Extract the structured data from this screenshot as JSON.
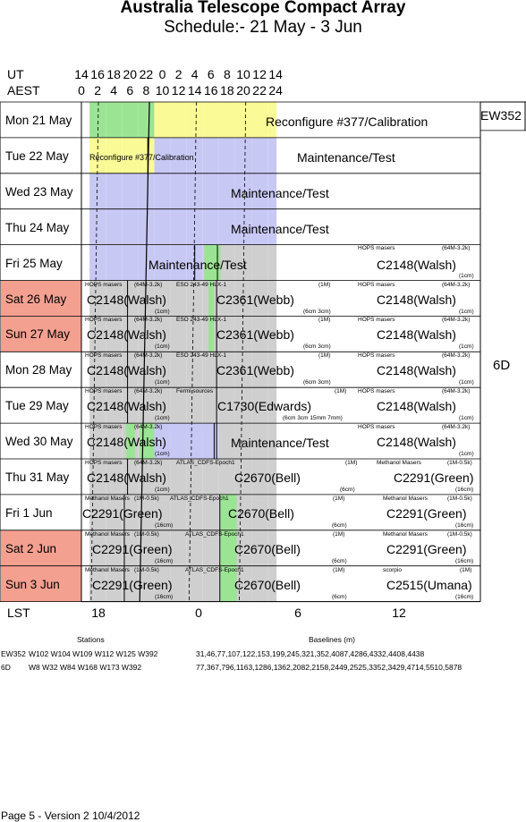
{
  "header": {
    "title": "Australia Telescope Compact Array",
    "subtitle": "Schedule:- 21 May - 3  Jun"
  },
  "axes": {
    "ut_label": "UT",
    "aest_label": "AEST",
    "ut_ticks": [
      "14",
      "16",
      "18",
      "20",
      "22",
      "0",
      "2",
      "4",
      "6",
      "8",
      "10",
      "12",
      "14"
    ],
    "aest_ticks": [
      "0",
      "2",
      "4",
      "6",
      "8",
      "10",
      "12",
      "14",
      "16",
      "18",
      "20",
      "22",
      "24"
    ],
    "lst_label": "LST",
    "lst_ticks": [
      "18",
      "0",
      "6",
      "12"
    ]
  },
  "days": [
    {
      "label": "Mon 21 May",
      "weekend": false
    },
    {
      "label": "Tue  22 May",
      "weekend": false
    },
    {
      "label": "Wed 23 May",
      "weekend": false
    },
    {
      "label": "Thu  24 May",
      "weekend": false
    },
    {
      "label": "Fri    25 May",
      "weekend": false
    },
    {
      "label": "Sat   26 May",
      "weekend": true
    },
    {
      "label": "Sun  27 May",
      "weekend": true
    },
    {
      "label": "Mon 28 May",
      "weekend": false
    },
    {
      "label": "Tue   29 May",
      "weekend": false
    },
    {
      "label": "Wed 30 May",
      "weekend": false
    },
    {
      "label": "Thu   31 May",
      "weekend": false
    },
    {
      "label": "Fri     1  Jun",
      "weekend": false
    },
    {
      "label": "Sat    2  Jun",
      "weekend": true
    },
    {
      "label": "Sun   3  Jun",
      "weekend": true
    }
  ],
  "configs": [
    {
      "label": "EW352"
    },
    {
      "label": "6D"
    }
  ],
  "blocks": {
    "reconf1": "Reconfigure #377/Calibration",
    "reconf2": "Reconfigure #377/Calibration",
    "maint22": "Maintenance/Test",
    "maint23": "Maintenance/Test",
    "maint24": "Maintenance/Test",
    "maint25": "Maintenance/Test",
    "maint30": "Maintenance/Test",
    "c2148": "C2148(Walsh)",
    "c2361": "C2361(Webb)",
    "c1730": "C1730(Edwards)",
    "c2670": "C2670(Bell)",
    "c2291": "C2291(Green)",
    "c2515": "C2515(Umana)",
    "hops": "HOPS masers",
    "hops_band": "(64M-3.2k)",
    "cm1": "(1cm)",
    "eso": "ESO 243-49 HLX-1",
    "oneM": "(1M)",
    "sixcm3cm": "(6cm 3cm)",
    "fermi": "Fermi sources",
    "fermi_band": "(6cm 3cm 15mm 7mm)",
    "atlas": "ATLAS_CDFS-Epoch1",
    "sixcm": "(6cm)",
    "methanol": "Methanol Masers",
    "methanol_band": "(1M-0.5k)",
    "cm16": "(16cm)",
    "scorpio": "scorpio"
  },
  "stations": {
    "stations_header": "Stations",
    "baselines_header": "Baselines (m)",
    "rows": [
      {
        "config": "EW352",
        "stations": "W102 W104 W109 W112 W125 W392",
        "baselines": "31,46,77,107,122,153,199,245,321,352,4087,4286,4332,4408,4438"
      },
      {
        "config": "6D",
        "stations": "W8 W32 W84 W168 W173 W392",
        "baselines": "77,367,796,1163,1286,1362,2082,2158,2449,2525,3352,3429,4714,5510,5878"
      }
    ]
  },
  "footer": "Page 5 - Version 2  10/4/2012",
  "colors": {
    "weekend": "#f4a090",
    "yellow": "#fafa96",
    "green": "#9be494",
    "lavender": "#c8c8f4",
    "gray": "#cfcfcf"
  }
}
